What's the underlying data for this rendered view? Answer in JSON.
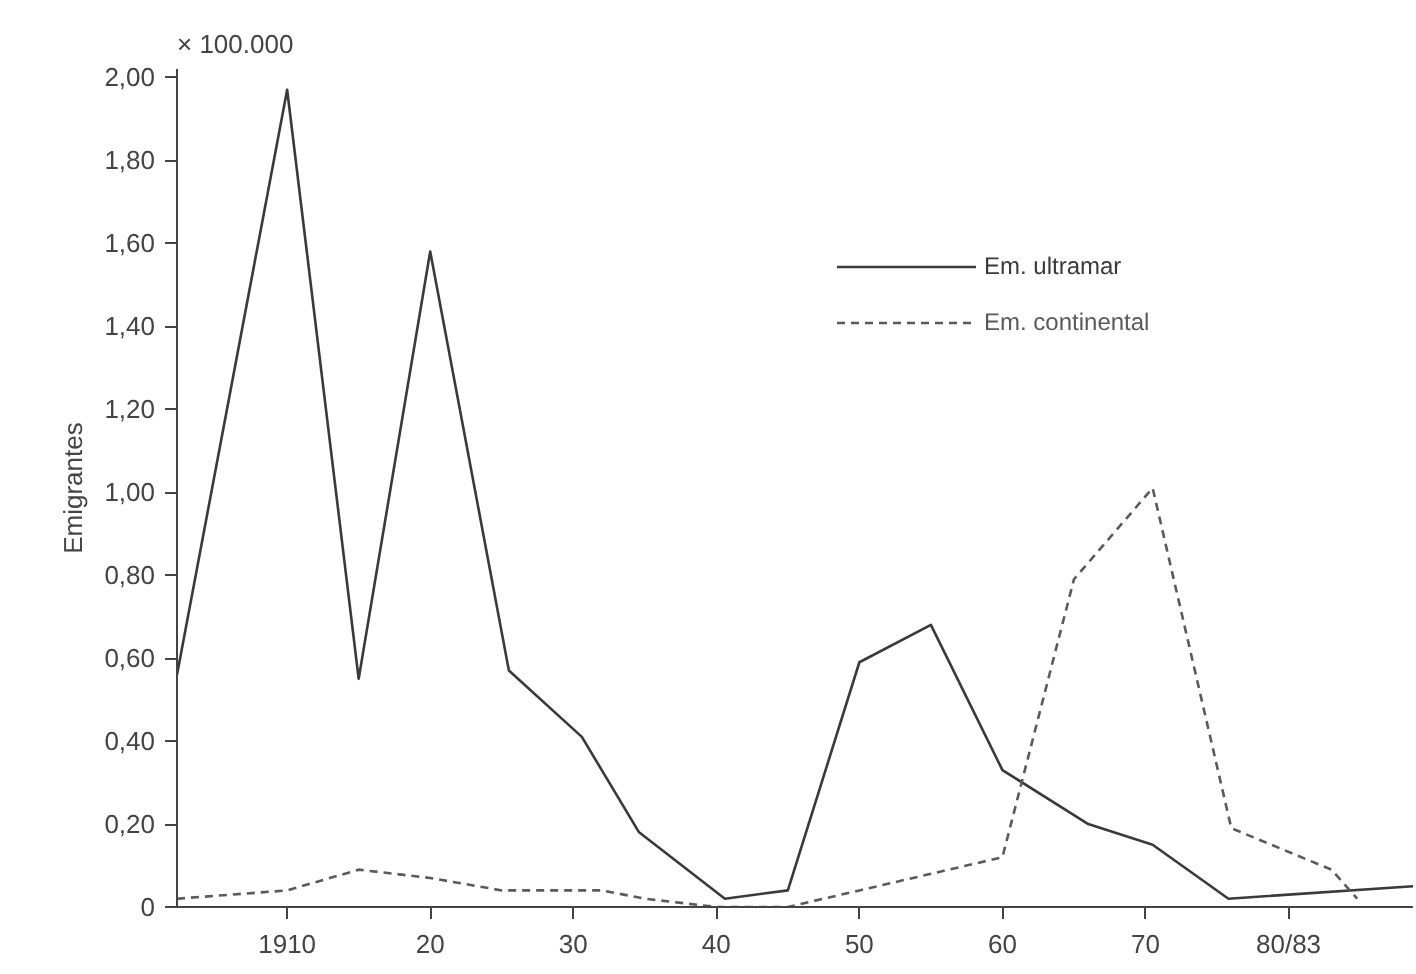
{
  "chart_data": {
    "type": "line",
    "ylabel": "Emigrantes",
    "annotations": [
      "× 100.000"
    ],
    "xlim": [
      1902.3,
      1988.7
    ],
    "ylim": [
      0,
      2.02
    ],
    "xticks": [
      1910,
      {
        "value": 1920,
        "label": "20"
      },
      {
        "value": 1930,
        "label": "30"
      },
      {
        "value": 1940,
        "label": "40"
      },
      {
        "value": 1950,
        "label": "50"
      },
      {
        "value": 1960,
        "label": "60"
      },
      {
        "value": 1970,
        "label": "70"
      },
      {
        "value": 1980,
        "label": "80/83"
      }
    ],
    "yticks": [
      0,
      {
        "value": 0.2,
        "label": "0,20"
      },
      {
        "value": 0.4,
        "label": "0,40"
      },
      {
        "value": 0.6,
        "label": "0,60"
      },
      {
        "value": 0.8,
        "label": "0,80"
      },
      {
        "value": 1.0,
        "label": "1,00"
      },
      {
        "value": 1.2,
        "label": "1,20"
      },
      {
        "value": 1.4,
        "label": "1,40"
      },
      {
        "value": 1.6,
        "label": "1,60"
      },
      {
        "value": 1.8,
        "label": "1,80"
      },
      {
        "value": 2.0,
        "label": "2,00"
      }
    ],
    "grid": false,
    "legend": "top right",
    "marker": "none",
    "series": [
      {
        "name": "Em. ultramar",
        "color": "#3a3a3a",
        "line_style": "solid",
        "x": [
          1902.3,
          1910,
          1915,
          1920,
          1925.5,
          1930.6,
          1934.6,
          1940.6,
          1945,
          1950,
          1955,
          1960,
          1966,
          1970.5,
          1975.8,
          1988.7
        ],
        "values": [
          0.56,
          1.97,
          0.55,
          1.58,
          0.57,
          0.41,
          0.18,
          0.02,
          0.04,
          0.59,
          0.68,
          0.33,
          0.2,
          0.15,
          0.02,
          0.05
        ]
      },
      {
        "name": "Em. continental",
        "color": "#5a5a5a",
        "line_style": "dashed",
        "x": [
          1902.3,
          1910,
          1915,
          1920,
          1925,
          1932,
          1935,
          1940,
          1945,
          1950,
          1955,
          1960,
          1965,
          1970.5,
          1976,
          1983,
          1984.8
        ],
        "values": [
          0.02,
          0.04,
          0.09,
          0.07,
          0.04,
          0.04,
          0.02,
          0.0,
          0.0,
          0.04,
          0.08,
          0.12,
          0.79,
          1.01,
          0.19,
          0.09,
          0.02
        ]
      }
    ]
  }
}
